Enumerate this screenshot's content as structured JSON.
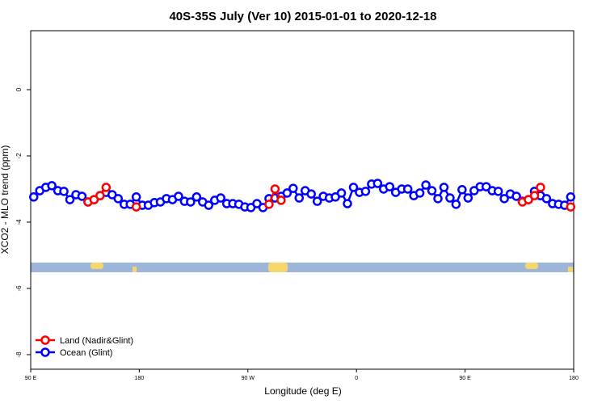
{
  "chart_data": {
    "type": "line",
    "title": "40S-35S July (Ver 10)   2015-01-01 to 2020-12-18",
    "x_label": "Longitude (deg E)",
    "y_label": "XCO2 - MLO trend (ppm)",
    "xlim": [
      90,
      540
    ],
    "ylim": [
      -8.44,
      1.78
    ],
    "xticks": [
      {
        "value": 90,
        "label": "90 E"
      },
      180,
      {
        "value": 270,
        "label": "90 W"
      },
      {
        "value": 360,
        "label": "0"
      },
      {
        "value": 450,
        "label": "90 E"
      },
      {
        "value": 540,
        "label": "180"
      }
    ],
    "yticks": [
      0,
      -2,
      -4,
      -6,
      -8
    ],
    "legend": "bottom-left",
    "series": [
      {
        "name": "Land (Nadir&Glint)",
        "color": "#ff0000",
        "x": [
          137.5,
          142.5,
          147.5,
          152.5,
          162.5,
          177.5,
          182.5,
          287.5,
          292.5,
          297.5,
          302.5,
          497.5,
          502.5,
          507.5,
          512.5,
          527.5,
          537.5
        ],
        "values": [
          -3.39,
          -3.32,
          -3.2,
          -2.95,
          null,
          -3.54,
          null,
          -3.46,
          -3.0,
          -3.34,
          null,
          -3.39,
          -3.32,
          -3.2,
          -2.95,
          null,
          -3.54
        ]
      },
      {
        "name": "Ocean (Glint)",
        "color": "#0000ff",
        "x": [
          92.5,
          97.5,
          102.5,
          107.5,
          112.5,
          117.5,
          122.5,
          127.5,
          132.5,
          137.5,
          142.5,
          147.5,
          152.5,
          157.5,
          162.5,
          167.5,
          172.5,
          177.5,
          182.5,
          187.5,
          192.5,
          197.5,
          202.5,
          207.5,
          212.5,
          217.5,
          222.5,
          227.5,
          232.5,
          237.5,
          242.5,
          247.5,
          252.5,
          257.5,
          262.5,
          267.5,
          272.5,
          277.5,
          282.5,
          287.5,
          292.5,
          297.5,
          302.5,
          307.5,
          312.5,
          317.5,
          322.5,
          327.5,
          332.5,
          337.5,
          342.5,
          347.5,
          352.5,
          357.5,
          362.5,
          367.5,
          372.5,
          377.5,
          382.5,
          387.5,
          392.5,
          397.5,
          402.5,
          407.5,
          412.5,
          417.5,
          422.5,
          427.5,
          432.5,
          437.5,
          442.5,
          447.5,
          452.5,
          457.5,
          462.5,
          467.5,
          472.5,
          477.5,
          482.5,
          487.5,
          492.5,
          497.5,
          502.5,
          507.5,
          512.5,
          517.5,
          522.5,
          527.5,
          532.5,
          537.5
        ],
        "values": [
          -3.24,
          -3.05,
          -2.95,
          -2.9,
          -3.05,
          -3.07,
          -3.32,
          -3.17,
          -3.22,
          -3.39,
          -3.32,
          -3.2,
          -3.1,
          -3.17,
          -3.29,
          -3.46,
          -3.46,
          -3.24,
          -3.49,
          -3.49,
          -3.41,
          -3.39,
          -3.29,
          -3.32,
          -3.22,
          -3.37,
          -3.39,
          -3.24,
          -3.39,
          -3.49,
          -3.34,
          -3.27,
          -3.44,
          -3.44,
          -3.46,
          -3.54,
          -3.56,
          -3.44,
          -3.56,
          -3.29,
          -3.27,
          -3.22,
          -3.12,
          -2.98,
          -3.27,
          -3.05,
          -3.15,
          -3.37,
          -3.22,
          -3.27,
          -3.24,
          -3.12,
          -3.44,
          -2.95,
          -3.1,
          -3.07,
          -2.85,
          -2.83,
          -3.0,
          -2.93,
          -3.1,
          -3.0,
          -3.0,
          -3.2,
          -3.12,
          -2.88,
          -3.05,
          -3.29,
          -2.95,
          -3.27,
          -3.46,
          -3.02,
          -3.27,
          -3.05,
          -2.93,
          -2.93,
          -3.05,
          -3.07,
          -3.29,
          -3.15,
          -3.22,
          -3.37,
          -3.32,
          -3.07,
          -3.2,
          -3.29,
          -3.44,
          -3.46,
          -3.49,
          -3.24
        ]
      }
    ]
  }
}
